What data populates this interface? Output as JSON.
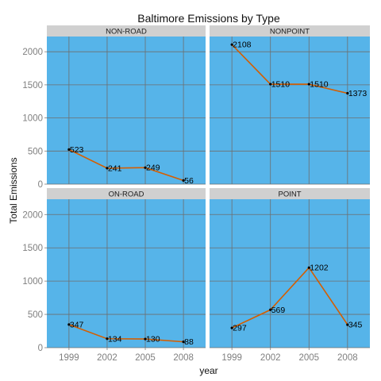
{
  "chart_data": {
    "type": "line",
    "title": "Baltimore Emissions by Type",
    "xlabel": "year",
    "ylabel": "Total Emissions",
    "x": [
      1999,
      2002,
      2005,
      2008
    ],
    "xticks": [
      "1999",
      "2002",
      "2005",
      "2008"
    ],
    "yticks": [
      "0",
      "500",
      "1000",
      "1500",
      "2000"
    ],
    "ylim": [
      0,
      2230
    ],
    "grid": true,
    "legend": "none",
    "colors": {
      "panel_bg": "#56b4e9",
      "strip_bg": "#d0d0d0",
      "line": "#d55e00",
      "point": "#000000",
      "grid": "#6e6e6e"
    },
    "facets": [
      {
        "label": "NON-ROAD",
        "values": [
          523,
          241,
          249,
          56
        ],
        "value_labels": [
          "523",
          "241",
          "249",
          "56"
        ]
      },
      {
        "label": "NONPOINT",
        "values": [
          2108,
          1510,
          1510,
          1373
        ],
        "value_labels": [
          "2108",
          "1510",
          "1510",
          "1373"
        ]
      },
      {
        "label": "ON-ROAD",
        "values": [
          347,
          134,
          130,
          88
        ],
        "value_labels": [
          "347",
          "134",
          "130",
          "88"
        ]
      },
      {
        "label": "POINT",
        "values": [
          297,
          569,
          1202,
          345
        ],
        "value_labels": [
          "297",
          "569",
          "1202",
          "345"
        ]
      }
    ]
  }
}
